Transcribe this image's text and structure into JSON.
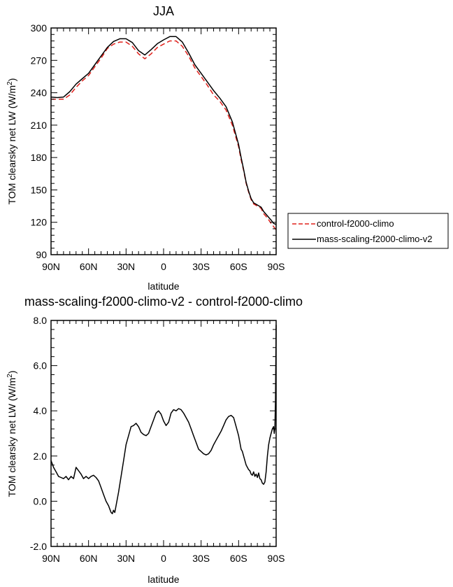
{
  "chart_data": [
    {
      "type": "line",
      "title": "JJA",
      "xlabel": "latitude",
      "ylabel": "TOM clearsky net LW (W/m",
      "ylabel_sup": "2",
      "ylabel_close": ")",
      "xlim": [
        90,
        -90
      ],
      "ylim": [
        90,
        300
      ],
      "xticks": [
        90,
        60,
        30,
        0,
        -30,
        -60,
        -90
      ],
      "xticklabels": [
        "90N",
        "60N",
        "30N",
        "0",
        "30S",
        "60S",
        "90S"
      ],
      "yticks": [
        90,
        120,
        150,
        180,
        210,
        240,
        270,
        300
      ],
      "yticklabels": [
        "90",
        "120",
        "150",
        "180",
        "210",
        "240",
        "270",
        "300"
      ],
      "legend_position": "outside-right",
      "series": [
        {
          "name": "control-f2000-climo",
          "color": "#e0201b",
          "dash": "dashed",
          "x": [
            90,
            85,
            80,
            75,
            70,
            65,
            60,
            55,
            50,
            45,
            40,
            35,
            30,
            25,
            20,
            15,
            10,
            5,
            0,
            -5,
            -10,
            -15,
            -20,
            -25,
            -30,
            -35,
            -40,
            -45,
            -50,
            -55,
            -60,
            -62,
            -64,
            -66,
            -68,
            -70,
            -72,
            -75,
            -78,
            -80,
            -83,
            -86,
            -88,
            -90
          ],
          "y": [
            234,
            234,
            234,
            238,
            245,
            251,
            256,
            264,
            272,
            281,
            285,
            287,
            287,
            283,
            276,
            271.5,
            276,
            282,
            285,
            288,
            288,
            283,
            274,
            263,
            255,
            247,
            238,
            232,
            224,
            210,
            190,
            178,
            168,
            156,
            148,
            141,
            137,
            135,
            133,
            128,
            124,
            119,
            116,
            113
          ]
        },
        {
          "name": "mass-scaling-f2000-climo-v2",
          "color": "#000000",
          "dash": "solid",
          "x": [
            90,
            85,
            80,
            75,
            70,
            65,
            60,
            55,
            50,
            45,
            40,
            35,
            30,
            25,
            20,
            15,
            10,
            5,
            0,
            -5,
            -10,
            -15,
            -20,
            -25,
            -30,
            -35,
            -40,
            -45,
            -50,
            -55,
            -60,
            -62,
            -64,
            -66,
            -68,
            -70,
            -72,
            -75,
            -78,
            -80,
            -83,
            -86,
            -88,
            -90
          ],
          "y": [
            236,
            235.5,
            236,
            241,
            248,
            253,
            258,
            266,
            274,
            282,
            287.5,
            290,
            290,
            286.5,
            279,
            275,
            280,
            285.5,
            289,
            292,
            292,
            287,
            277,
            266,
            258,
            250,
            242,
            235,
            227,
            213,
            192,
            180,
            169,
            157,
            149,
            142,
            138,
            136,
            134,
            130,
            126,
            122,
            119,
            118
          ]
        }
      ]
    },
    {
      "type": "line",
      "title": "mass-scaling-f2000-climo-v2 - control-f2000-climo",
      "xlabel": "latitude",
      "ylabel": "TOM clearsky net LW (W/m",
      "ylabel_sup": "2",
      "ylabel_close": ")",
      "xlim": [
        90,
        -90
      ],
      "ylim": [
        -2,
        8
      ],
      "xticks": [
        90,
        60,
        30,
        0,
        -30,
        -60,
        -90
      ],
      "xticklabels": [
        "90N",
        "60N",
        "30N",
        "0",
        "30S",
        "60S",
        "90S"
      ],
      "yticks": [
        -2,
        0,
        2,
        4,
        6,
        8
      ],
      "yticklabels": [
        "-2.0",
        "0.0",
        "2.0",
        "4.0",
        "6.0",
        "8.0"
      ],
      "series": [
        {
          "color": "#000000",
          "dash": "solid",
          "x": [
            90,
            88,
            86,
            84,
            82,
            80,
            78,
            76,
            74,
            72,
            70,
            68,
            66,
            64,
            62,
            60,
            58,
            56,
            54,
            52,
            50,
            48,
            46,
            44,
            43,
            42,
            41,
            40,
            39,
            38,
            36,
            34,
            32,
            30,
            28,
            26,
            24,
            22,
            20,
            18,
            16,
            14,
            12,
            10,
            8,
            6,
            4,
            2,
            0,
            -2,
            -4,
            -6,
            -8,
            -10,
            -12,
            -14,
            -16,
            -18,
            -20,
            -22,
            -24,
            -26,
            -28,
            -30,
            -32,
            -34,
            -36,
            -38,
            -40,
            -42,
            -44,
            -46,
            -48,
            -50,
            -52,
            -54,
            -56,
            -58,
            -60,
            -61,
            -62,
            -63,
            -64,
            -65,
            -66,
            -67,
            -68,
            -69,
            -70,
            -71,
            -72,
            -73,
            -74,
            -75,
            -76,
            -77,
            -78,
            -79,
            -80,
            -81,
            -82,
            -83,
            -84,
            -85,
            -86,
            -87,
            -88,
            -88.5,
            -89,
            -89.5,
            -90
          ],
          "y": [
            1.8,
            1.5,
            1.3,
            1.1,
            1.05,
            1.0,
            1.1,
            0.95,
            1.1,
            1.0,
            1.5,
            1.35,
            1.2,
            1.0,
            1.1,
            1.0,
            1.1,
            1.15,
            1.05,
            0.9,
            0.6,
            0.3,
            0.0,
            -0.2,
            -0.35,
            -0.5,
            -0.55,
            -0.4,
            -0.5,
            -0.2,
            0.4,
            1.1,
            1.8,
            2.5,
            2.9,
            3.3,
            3.35,
            3.45,
            3.3,
            3.05,
            2.95,
            2.9,
            3.0,
            3.3,
            3.6,
            3.9,
            4.0,
            3.85,
            3.55,
            3.35,
            3.5,
            3.9,
            4.05,
            4.0,
            4.1,
            4.05,
            3.9,
            3.7,
            3.5,
            3.2,
            2.9,
            2.6,
            2.3,
            2.2,
            2.1,
            2.05,
            2.1,
            2.25,
            2.5,
            2.7,
            2.9,
            3.1,
            3.35,
            3.6,
            3.75,
            3.8,
            3.7,
            3.3,
            2.9,
            2.6,
            2.3,
            2.2,
            2.0,
            1.8,
            1.6,
            1.5,
            1.4,
            1.35,
            1.2,
            1.15,
            1.3,
            1.1,
            1.2,
            1.05,
            1.25,
            1.0,
            0.95,
            0.8,
            0.75,
            0.85,
            1.3,
            2.0,
            2.5,
            2.8,
            3.0,
            3.2,
            3.3,
            3.0,
            3.2,
            4.5,
            7.8
          ]
        }
      ]
    }
  ]
}
